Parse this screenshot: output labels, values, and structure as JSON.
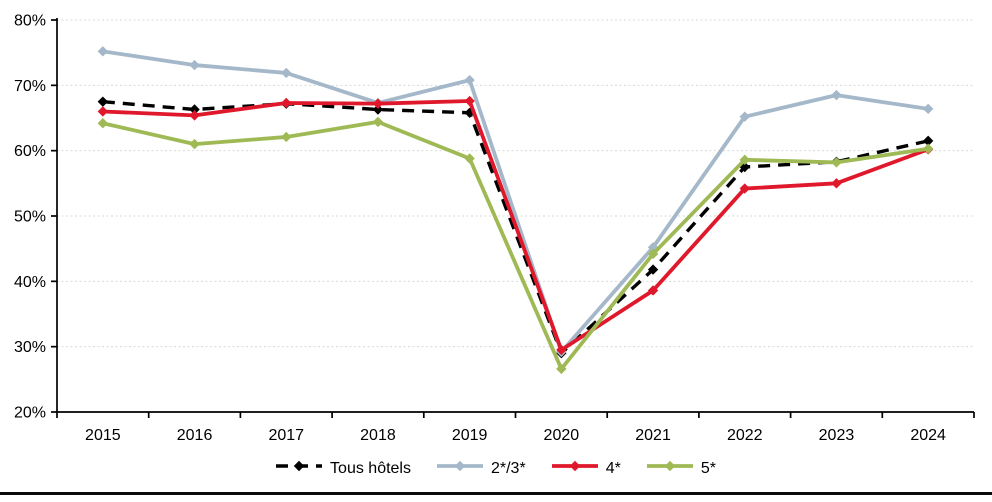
{
  "chart_data": {
    "type": "line",
    "title": "",
    "xlabel": "",
    "ylabel": "",
    "categories": [
      "2015",
      "2016",
      "2017",
      "2018",
      "2019",
      "2020",
      "2021",
      "2022",
      "2023",
      "2024"
    ],
    "series": [
      {
        "name": "Tous hôtels",
        "color": "#000000",
        "dashed": true,
        "marker": "diamond",
        "values": [
          67.5,
          66.3,
          67.2,
          66.3,
          65.8,
          29.0,
          41.8,
          57.5,
          58.3,
          61.5
        ]
      },
      {
        "name": "2*/3*",
        "color": "#a5b8ca",
        "dashed": false,
        "marker": "diamond",
        "values": [
          75.2,
          73.1,
          71.9,
          67.3,
          70.8,
          29.2,
          45.2,
          65.2,
          68.5,
          66.4
        ]
      },
      {
        "name": "4*",
        "color": "#e0182b",
        "dashed": false,
        "marker": "diamond",
        "values": [
          66.0,
          65.4,
          67.3,
          67.2,
          67.6,
          29.5,
          38.6,
          54.2,
          55.0,
          60.2
        ]
      },
      {
        "name": "5*",
        "color": "#9fba55",
        "dashed": false,
        "marker": "diamond",
        "values": [
          64.2,
          61.0,
          62.1,
          64.4,
          58.8,
          26.6,
          44.2,
          58.6,
          58.2,
          60.3
        ]
      }
    ],
    "ylim": [
      20,
      80
    ],
    "y_ticks": [
      {
        "value": 20,
        "label": "20%"
      },
      {
        "value": 30,
        "label": "30%"
      },
      {
        "value": 40,
        "label": "40%"
      },
      {
        "value": 50,
        "label": "50%"
      },
      {
        "value": 60,
        "label": "60%"
      },
      {
        "value": 70,
        "label": "70%"
      },
      {
        "value": 80,
        "label": "80%"
      }
    ],
    "grid": true,
    "gridline_color": "#d9d9d9",
    "axis_color": "#000000",
    "legend_position": "bottom"
  }
}
